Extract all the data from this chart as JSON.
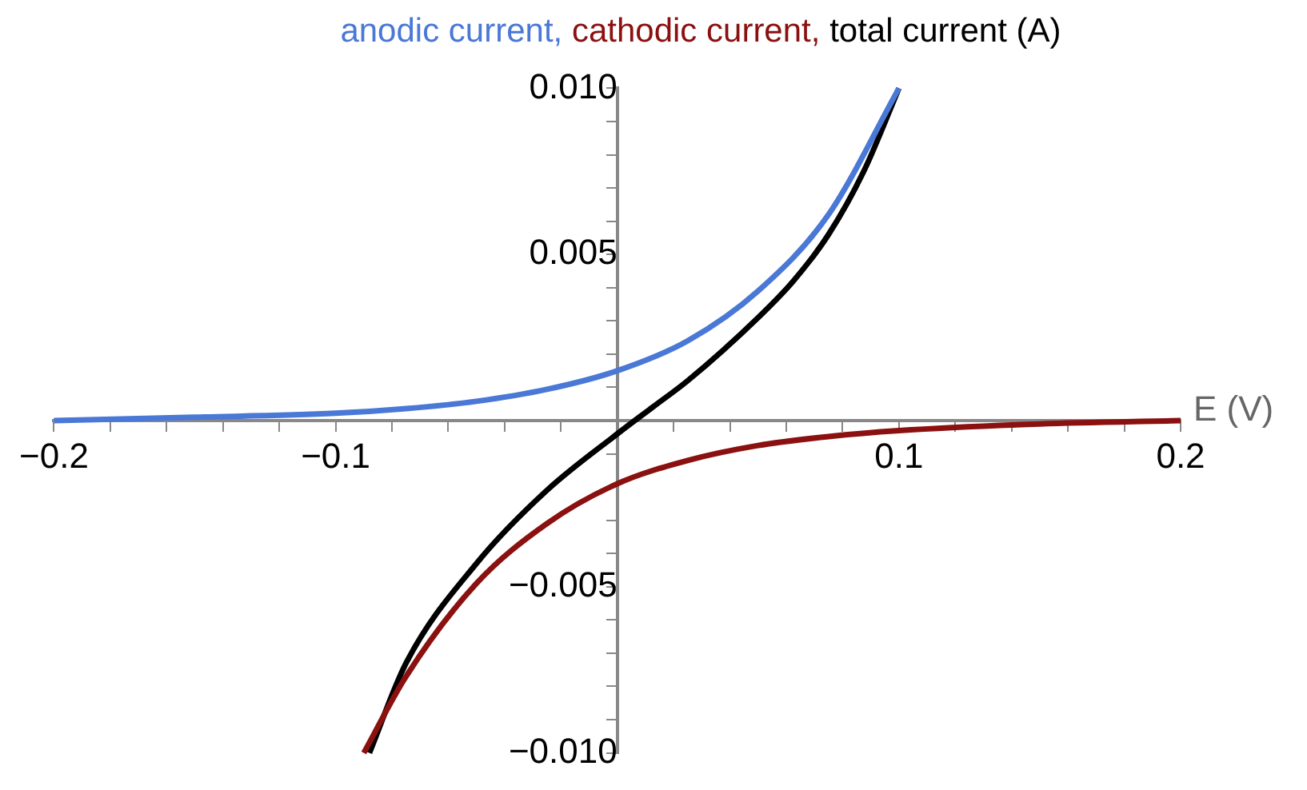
{
  "chart_data": {
    "type": "line",
    "xlabel": "E (V)",
    "ylabel": "(A)",
    "legend": "top",
    "marker": "none",
    "line_style": "solid",
    "grid": false,
    "xlim": [
      -0.2,
      0.2
    ],
    "ylim": [
      -0.01,
      0.01
    ],
    "xticks": [
      {
        "value": -0.2,
        "label": "−0.2"
      },
      {
        "value": -0.18,
        "label": null
      },
      {
        "value": -0.16,
        "label": null
      },
      {
        "value": -0.14,
        "label": null
      },
      {
        "value": -0.12,
        "label": null
      },
      {
        "value": -0.1,
        "label": "−0.1"
      },
      {
        "value": -0.08,
        "label": null
      },
      {
        "value": -0.06,
        "label": null
      },
      {
        "value": -0.04,
        "label": null
      },
      {
        "value": -0.02,
        "label": null
      },
      {
        "value": 0.02,
        "label": null
      },
      {
        "value": 0.04,
        "label": null
      },
      {
        "value": 0.06,
        "label": null
      },
      {
        "value": 0.08,
        "label": null
      },
      0.1,
      {
        "value": 0.12,
        "label": null
      },
      {
        "value": 0.14,
        "label": null
      },
      {
        "value": 0.16,
        "label": null
      },
      {
        "value": 0.18,
        "label": null
      },
      0.2
    ],
    "yticks": [
      {
        "value": -0.01,
        "label": "−0.010"
      },
      {
        "value": -0.009,
        "label": null
      },
      {
        "value": -0.008,
        "label": null
      },
      {
        "value": -0.007,
        "label": null
      },
      {
        "value": -0.006,
        "label": null
      },
      {
        "value": -0.005,
        "label": "−0.005"
      },
      {
        "value": -0.004,
        "label": null
      },
      {
        "value": -0.003,
        "label": null
      },
      {
        "value": -0.002,
        "label": null
      },
      {
        "value": -0.001,
        "label": null
      },
      {
        "value": 0.001,
        "label": null
      },
      {
        "value": 0.002,
        "label": null
      },
      {
        "value": 0.003,
        "label": null
      },
      {
        "value": 0.004,
        "label": null
      },
      {
        "value": 0.005,
        "label": "0.005"
      },
      {
        "value": 0.006,
        "label": null
      },
      {
        "value": 0.007,
        "label": null
      },
      {
        "value": 0.008,
        "label": null
      },
      {
        "value": 0.009,
        "label": null
      },
      {
        "value": 0.01,
        "label": "0.010"
      }
    ],
    "series": [
      {
        "name": "anodic current,",
        "color": "#4a78d6",
        "x": [
          -0.2,
          -0.15,
          -0.1,
          -0.075,
          -0.05,
          -0.025,
          0,
          0.025,
          0.05,
          0.075,
          0.1
        ],
        "values": [
          0,
          0.0001,
          0.00022,
          0.00036,
          0.00058,
          0.00094,
          0.0015,
          0.0024,
          0.0039,
          0.0062,
          0.01
        ]
      },
      {
        "name": "cathodic current,",
        "color": "#8b1010",
        "x": [
          -0.09,
          -0.075,
          -0.05,
          -0.025,
          0,
          0.025,
          0.05,
          0.075,
          0.1,
          0.15,
          0.2
        ],
        "values": [
          -0.01,
          -0.0077,
          -0.0049,
          -0.0031,
          -0.0019,
          -0.0012,
          -0.00075,
          -0.00048,
          -0.0003,
          -0.0001,
          0
        ]
      },
      {
        "name": "total current",
        "color": "#000000",
        "x": [
          -0.088,
          -0.075,
          -0.05,
          -0.025,
          0,
          0.0125,
          0.025,
          0.05,
          0.0625,
          0.075,
          0.0875,
          0.1
        ],
        "values": [
          -0.01,
          -0.0073,
          -0.0043,
          -0.0021,
          -0.0004,
          0.0004,
          0.0012,
          0.0031,
          0.0042,
          0.0056,
          0.0075,
          0.01
        ]
      }
    ]
  }
}
